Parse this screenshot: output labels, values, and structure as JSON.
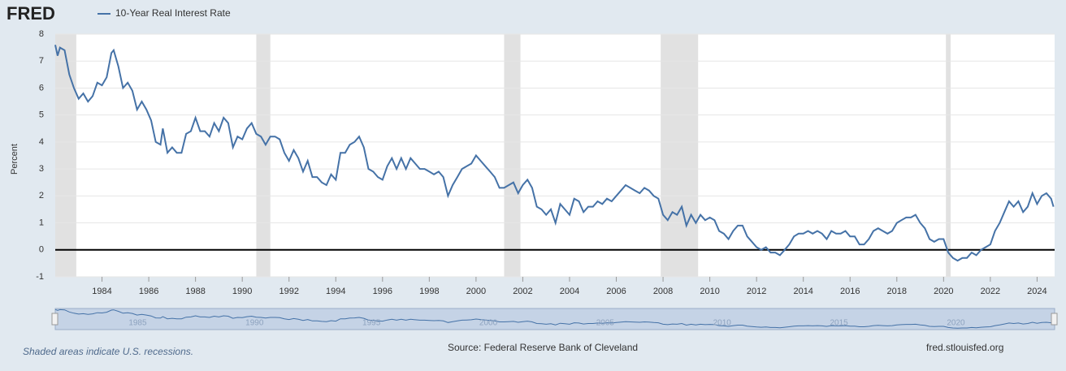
{
  "chart_data": {
    "type": "line",
    "logo": "FRED",
    "y_label": "Percent",
    "note": "Shaded areas indicate U.S. recessions.",
    "source": "Source: Federal Reserve Bank of Cleveland",
    "site": "fred.stlouisfed.org",
    "xlim": [
      1982,
      2024.75
    ],
    "ylim": [
      -1,
      8
    ],
    "xticks": [
      1984,
      1986,
      1988,
      1990,
      1992,
      1994,
      1996,
      1998,
      2000,
      2002,
      2004,
      2006,
      2008,
      2010,
      2012,
      2014,
      2016,
      2018,
      2020,
      2022,
      2024
    ],
    "yticks": [
      -1,
      0,
      1,
      2,
      3,
      4,
      5,
      6,
      7,
      8
    ],
    "grid": true,
    "zero_line_color": "#000000",
    "recessions": [
      {
        "start": 1982.0,
        "end": 1982.9
      },
      {
        "start": 1990.6,
        "end": 1991.2
      },
      {
        "start": 2001.2,
        "end": 2001.9
      },
      {
        "start": 2007.9,
        "end": 2009.5
      },
      {
        "start": 2020.1,
        "end": 2020.3
      }
    ],
    "recession_color": "#e1e1e1",
    "navigator_ticks": [
      1985,
      1990,
      1995,
      2000,
      2005,
      2010,
      2015,
      2020
    ],
    "series": [
      {
        "name": "10-Year Real Interest Rate",
        "color": "#4572a7",
        "x": [
          1982.0,
          1982.1,
          1982.2,
          1982.4,
          1982.6,
          1982.8,
          1983.0,
          1983.2,
          1983.4,
          1983.6,
          1983.8,
          1984.0,
          1984.2,
          1984.4,
          1984.5,
          1984.7,
          1984.9,
          1985.1,
          1985.3,
          1985.5,
          1985.7,
          1985.9,
          1986.1,
          1986.3,
          1986.5,
          1986.6,
          1986.8,
          1987.0,
          1987.2,
          1987.4,
          1987.6,
          1987.8,
          1988.0,
          1988.2,
          1988.4,
          1988.6,
          1988.8,
          1989.0,
          1989.2,
          1989.4,
          1989.6,
          1989.8,
          1990.0,
          1990.2,
          1990.4,
          1990.6,
          1990.8,
          1991.0,
          1991.2,
          1991.4,
          1991.6,
          1991.8,
          1992.0,
          1992.2,
          1992.4,
          1992.6,
          1992.8,
          1993.0,
          1993.2,
          1993.4,
          1993.6,
          1993.8,
          1994.0,
          1994.2,
          1994.4,
          1994.6,
          1994.8,
          1995.0,
          1995.2,
          1995.4,
          1995.6,
          1995.8,
          1996.0,
          1996.2,
          1996.4,
          1996.6,
          1996.8,
          1997.0,
          1997.2,
          1997.4,
          1997.6,
          1997.8,
          1998.0,
          1998.2,
          1998.4,
          1998.6,
          1998.8,
          1999.0,
          1999.2,
          1999.4,
          1999.6,
          1999.8,
          2000.0,
          2000.2,
          2000.4,
          2000.6,
          2000.8,
          2001.0,
          2001.2,
          2001.4,
          2001.6,
          2001.8,
          2002.0,
          2002.2,
          2002.4,
          2002.6,
          2002.8,
          2003.0,
          2003.2,
          2003.4,
          2003.6,
          2003.8,
          2004.0,
          2004.2,
          2004.4,
          2004.6,
          2004.8,
          2005.0,
          2005.2,
          2005.4,
          2005.6,
          2005.8,
          2006.0,
          2006.2,
          2006.4,
          2006.6,
          2006.8,
          2007.0,
          2007.2,
          2007.4,
          2007.6,
          2007.8,
          2008.0,
          2008.2,
          2008.4,
          2008.6,
          2008.8,
          2009.0,
          2009.2,
          2009.4,
          2009.6,
          2009.8,
          2010.0,
          2010.2,
          2010.4,
          2010.6,
          2010.8,
          2011.0,
          2011.2,
          2011.4,
          2011.6,
          2011.8,
          2012.0,
          2012.2,
          2012.4,
          2012.6,
          2012.8,
          2013.0,
          2013.2,
          2013.4,
          2013.6,
          2013.8,
          2014.0,
          2014.2,
          2014.4,
          2014.6,
          2014.8,
          2015.0,
          2015.2,
          2015.4,
          2015.6,
          2015.8,
          2016.0,
          2016.2,
          2016.4,
          2016.6,
          2016.8,
          2017.0,
          2017.2,
          2017.4,
          2017.6,
          2017.8,
          2018.0,
          2018.2,
          2018.4,
          2018.6,
          2018.8,
          2019.0,
          2019.2,
          2019.4,
          2019.6,
          2019.8,
          2020.0,
          2020.2,
          2020.4,
          2020.6,
          2020.8,
          2021.0,
          2021.2,
          2021.4,
          2021.6,
          2021.8,
          2022.0,
          2022.2,
          2022.4,
          2022.6,
          2022.8,
          2023.0,
          2023.2,
          2023.4,
          2023.6,
          2023.8,
          2024.0,
          2024.2,
          2024.4,
          2024.6,
          2024.7
        ],
        "values": [
          7.6,
          7.2,
          7.5,
          7.4,
          6.5,
          6.0,
          5.6,
          5.8,
          5.5,
          5.7,
          6.2,
          6.1,
          6.4,
          7.3,
          7.4,
          6.8,
          6.0,
          6.2,
          5.9,
          5.2,
          5.5,
          5.2,
          4.8,
          4.0,
          3.9,
          4.5,
          3.6,
          3.8,
          3.6,
          3.6,
          4.3,
          4.4,
          4.9,
          4.4,
          4.4,
          4.2,
          4.7,
          4.4,
          4.9,
          4.7,
          3.8,
          4.2,
          4.1,
          4.5,
          4.7,
          4.3,
          4.2,
          3.9,
          4.2,
          4.2,
          4.1,
          3.6,
          3.3,
          3.7,
          3.4,
          2.9,
          3.3,
          2.7,
          2.7,
          2.5,
          2.4,
          2.8,
          2.6,
          3.6,
          3.6,
          3.9,
          4.0,
          4.2,
          3.8,
          3.0,
          2.9,
          2.7,
          2.6,
          3.1,
          3.4,
          3.0,
          3.4,
          3.0,
          3.4,
          3.2,
          3.0,
          3.0,
          2.9,
          2.8,
          2.9,
          2.7,
          2.0,
          2.4,
          2.7,
          3.0,
          3.1,
          3.2,
          3.5,
          3.3,
          3.1,
          2.9,
          2.7,
          2.3,
          2.3,
          2.4,
          2.5,
          2.1,
          2.4,
          2.6,
          2.3,
          1.6,
          1.5,
          1.3,
          1.5,
          1.0,
          1.7,
          1.5,
          1.3,
          1.9,
          1.8,
          1.4,
          1.6,
          1.6,
          1.8,
          1.7,
          1.9,
          1.8,
          2.0,
          2.2,
          2.4,
          2.3,
          2.2,
          2.1,
          2.3,
          2.2,
          2.0,
          1.9,
          1.3,
          1.1,
          1.4,
          1.3,
          1.6,
          0.9,
          1.3,
          1.0,
          1.3,
          1.1,
          1.2,
          1.1,
          0.7,
          0.6,
          0.4,
          0.7,
          0.9,
          0.9,
          0.5,
          0.3,
          0.1,
          0.0,
          0.1,
          -0.1,
          -0.1,
          -0.2,
          0.0,
          0.2,
          0.5,
          0.6,
          0.6,
          0.7,
          0.6,
          0.7,
          0.6,
          0.4,
          0.7,
          0.6,
          0.6,
          0.7,
          0.5,
          0.5,
          0.2,
          0.2,
          0.4,
          0.7,
          0.8,
          0.7,
          0.6,
          0.7,
          1.0,
          1.1,
          1.2,
          1.2,
          1.3,
          1.0,
          0.8,
          0.4,
          0.3,
          0.4,
          0.4,
          -0.1,
          -0.3,
          -0.4,
          -0.3,
          -0.3,
          -0.1,
          -0.2,
          0.0,
          0.1,
          0.2,
          0.7,
          1.0,
          1.4,
          1.8,
          1.6,
          1.8,
          1.4,
          1.6,
          2.1,
          1.7,
          2.0,
          2.1,
          1.9,
          1.6
        ]
      }
    ]
  }
}
